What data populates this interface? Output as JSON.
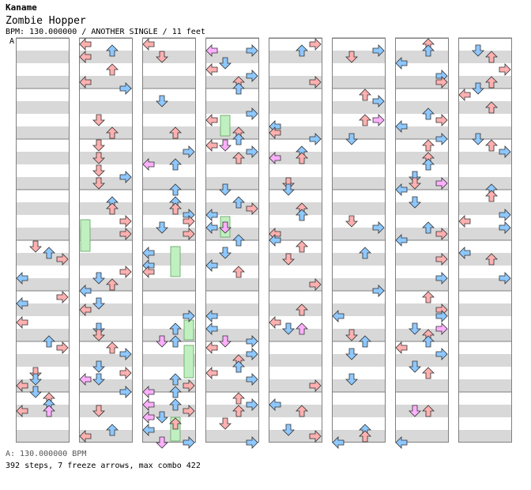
{
  "header": {
    "author": "Kaname",
    "title": "Zombie Hopper",
    "info": "BPM: 130.000000 / ANOTHER SINGLE / 11 feet",
    "section_marker": "A"
  },
  "footer": {
    "bpm_line": "A: 130.000000 BPM",
    "summary": "392 steps, 7 freeze arrows, max combo 422"
  },
  "colors": {
    "band_gray": "#d8d8d8",
    "measure_line": "#808080",
    "quarter_red": "#ffb0b0",
    "eighth_blue": "#8ec8ff",
    "sixteenth_pink": "#ffb0ff",
    "freeze_green": "#c0f0c0"
  },
  "chart_data": {
    "type": "step-chart",
    "columns": 8,
    "measures_per_column": 8,
    "lanes": [
      "left",
      "down",
      "up",
      "right"
    ],
    "steps": 392,
    "freeze_arrows": 7,
    "max_combo": 422
  }
}
